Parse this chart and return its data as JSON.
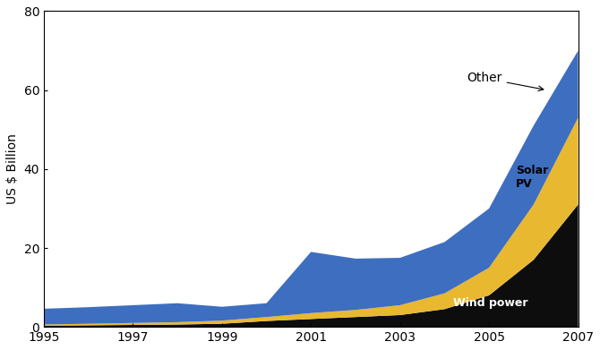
{
  "years": [
    1995,
    1996,
    1997,
    1998,
    1999,
    2000,
    2001,
    2002,
    2003,
    2004,
    2005,
    2006,
    2007
  ],
  "wind_power": [
    0.3,
    0.4,
    0.5,
    0.6,
    0.8,
    1.5,
    2.0,
    2.5,
    3.0,
    4.5,
    8.0,
    17.0,
    31.0
  ],
  "solar_pv": [
    0.3,
    0.4,
    0.5,
    0.6,
    0.8,
    1.0,
    1.5,
    1.8,
    2.5,
    4.0,
    7.0,
    14.0,
    22.0
  ],
  "other": [
    4.0,
    4.2,
    4.5,
    4.8,
    3.5,
    3.5,
    15.5,
    13.0,
    12.0,
    13.0,
    15.0,
    20.0,
    17.0
  ],
  "wind_color": "#0d0d0d",
  "solar_color": "#e8b830",
  "other_color": "#3e6ebf",
  "ylim": [
    0,
    80
  ],
  "xlim": [
    1995,
    2007
  ],
  "ylabel": "US $ Billion",
  "yticks": [
    0,
    20,
    40,
    60,
    80
  ],
  "xticks": [
    1995,
    1997,
    1999,
    2001,
    2003,
    2005,
    2007
  ],
  "bg_color": "#ffffff",
  "annotation_other_text": "Other",
  "annotation_solar_text": "Solar\nPV",
  "annotation_wind_text": "Wind power",
  "figsize": [
    6.7,
    3.91
  ],
  "dpi": 100
}
